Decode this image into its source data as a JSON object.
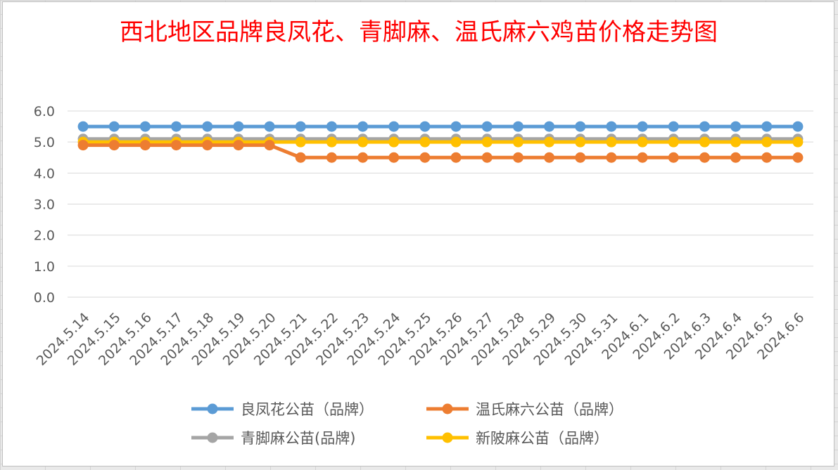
{
  "title": "西北地区品牌良凤花、青脚麻、温氏麻六鸡苗价格走势图",
  "chart_data": {
    "type": "line",
    "title": "西北地区品牌良凤花、青脚麻、温氏麻六鸡苗价格走势图",
    "xlabel": "",
    "ylabel": "",
    "ylim": [
      0,
      6
    ],
    "yticks": [
      "0.0",
      "1.0",
      "2.0",
      "3.0",
      "4.0",
      "5.0",
      "6.0"
    ],
    "grid": true,
    "legend_position": "bottom",
    "categories": [
      "2024.5.14",
      "2024.5.15",
      "2024.5.16",
      "2024.5.17",
      "2024.5.18",
      "2024.5.19",
      "2024.5.20",
      "2024.5.21",
      "2024.5.22",
      "2024.5.23",
      "2024.5.24",
      "2024.5.25",
      "2024.5.26",
      "2024.5.27",
      "2024.5.28",
      "2024.5.29",
      "2024.5.30",
      "2024.5.31",
      "2024.6.1",
      "2024.6.2",
      "2024.6.3",
      "2024.6.4",
      "2024.6.5",
      "2024.6.6"
    ],
    "series": [
      {
        "name": "良凤花公苗（品牌）",
        "color": "#5b9bd5",
        "values": [
          5.5,
          5.5,
          5.5,
          5.5,
          5.5,
          5.5,
          5.5,
          5.5,
          5.5,
          5.5,
          5.5,
          5.5,
          5.5,
          5.5,
          5.5,
          5.5,
          5.5,
          5.5,
          5.5,
          5.5,
          5.5,
          5.5,
          5.5,
          5.5
        ]
      },
      {
        "name": "青脚麻公苗(品牌)",
        "color": "#a5a5a5",
        "values": [
          5.1,
          5.1,
          5.1,
          5.1,
          5.1,
          5.1,
          5.1,
          5.1,
          5.1,
          5.1,
          5.1,
          5.1,
          5.1,
          5.1,
          5.1,
          5.1,
          5.1,
          5.1,
          5.1,
          5.1,
          5.1,
          5.1,
          5.1,
          5.1
        ]
      },
      {
        "name": "新陂麻公苗（品牌）",
        "color": "#ffc000",
        "values": [
          5.0,
          5.0,
          5.0,
          5.0,
          5.0,
          5.0,
          5.0,
          5.0,
          5.0,
          5.0,
          5.0,
          5.0,
          5.0,
          5.0,
          5.0,
          5.0,
          5.0,
          5.0,
          5.0,
          5.0,
          5.0,
          5.0,
          5.0,
          5.0
        ]
      },
      {
        "name": "温氏麻六公苗（品牌）",
        "color": "#ed7d31",
        "values": [
          4.9,
          4.9,
          4.9,
          4.9,
          4.9,
          4.9,
          4.9,
          4.5,
          4.5,
          4.5,
          4.5,
          4.5,
          4.5,
          4.5,
          4.5,
          4.5,
          4.5,
          4.5,
          4.5,
          4.5,
          4.5,
          4.5,
          4.5,
          4.5
        ]
      }
    ],
    "legend_order": [
      0,
      3,
      1,
      2
    ]
  }
}
